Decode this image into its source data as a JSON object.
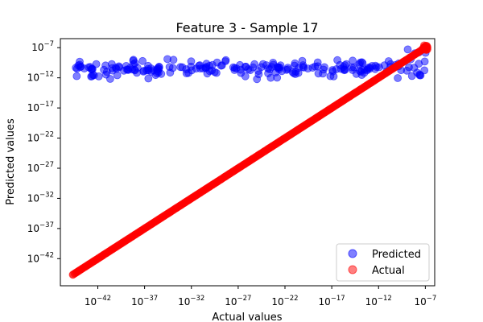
{
  "chart_data": {
    "type": "scatter",
    "title": "Feature 3 - Sample 17",
    "xlabel": "Actual values",
    "ylabel": "Predicted values",
    "xscale": "log",
    "yscale": "log",
    "x_exp_range": [
      -46,
      -6
    ],
    "y_exp_range": [
      -46.5,
      -5.5
    ],
    "x_ticks": [
      {
        "exp": -42,
        "base": "10",
        "power": "−42"
      },
      {
        "exp": -37,
        "base": "10",
        "power": "−37"
      },
      {
        "exp": -32,
        "base": "10",
        "power": "−32"
      },
      {
        "exp": -27,
        "base": "10",
        "power": "−27"
      },
      {
        "exp": -22,
        "base": "10",
        "power": "−22"
      },
      {
        "exp": -17,
        "base": "10",
        "power": "−17"
      },
      {
        "exp": -12,
        "base": "10",
        "power": "−12"
      },
      {
        "exp": -7,
        "base": "10",
        "power": "−7"
      }
    ],
    "y_ticks": [
      {
        "exp": -42,
        "base": "10",
        "power": "−42"
      },
      {
        "exp": -37,
        "base": "10",
        "power": "−37"
      },
      {
        "exp": -32,
        "base": "10",
        "power": "−32"
      },
      {
        "exp": -27,
        "base": "10",
        "power": "−27"
      },
      {
        "exp": -22,
        "base": "10",
        "power": "−22"
      },
      {
        "exp": -17,
        "base": "10",
        "power": "−17"
      },
      {
        "exp": -12,
        "base": "10",
        "power": "−12"
      },
      {
        "exp": -7,
        "base": "10",
        "power": "−7"
      }
    ],
    "grid": false,
    "legend_position": "lower-right",
    "series": [
      {
        "name": "Predicted",
        "color": "#0000ff",
        "x_exp_min": -44.7,
        "x_exp_max": -6.9,
        "count": 230,
        "y_exp_center": -10.5,
        "y_exp_spread": 1.3,
        "note_points": "y ≈ 1e-10.5 ± 1.3 decades across the full x range; a few points near 1e-7"
      },
      {
        "name": "Actual",
        "color": "#ff0000",
        "x_exp_min": -44.7,
        "x_exp_max": -6.9,
        "count": 400,
        "relation": "y = x"
      }
    ]
  }
}
